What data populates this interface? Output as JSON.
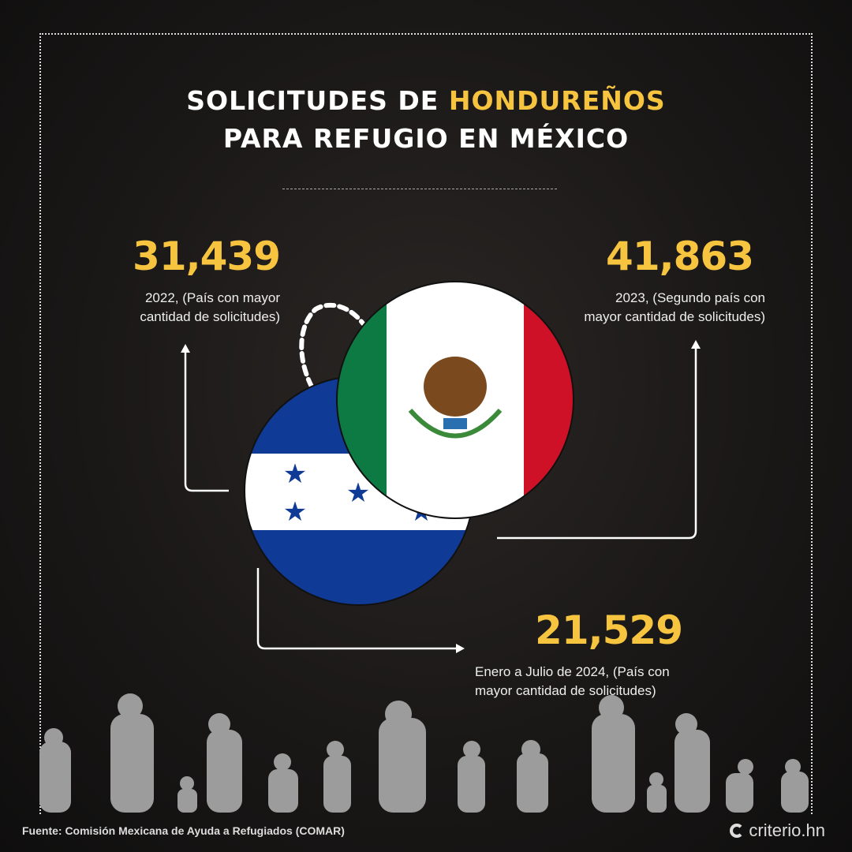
{
  "title": {
    "line1_part1": "SOLICITUDES DE ",
    "line1_highlight": "HONDUREÑOS",
    "line2": "PARA REFUGIO EN MÉXICO"
  },
  "stats": [
    {
      "value": "31,439",
      "caption_line1": "2022, (País con mayor",
      "caption_line2": "cantidad de solicitudes)"
    },
    {
      "value": "41,863",
      "caption_line1": "2023, (Segundo país con",
      "caption_line2": "mayor cantidad de solicitudes)"
    },
    {
      "value": "21,529",
      "caption_line1": "Enero a Julio de 2024, (País con",
      "caption_line2": "mayor cantidad de solicitudes)"
    }
  ],
  "flags": [
    "honduras-flag",
    "mexico-flag"
  ],
  "footer": {
    "source": "Fuente:  Comisión Mexicana de Ayuda a Refugiados (COMAR)",
    "brand": "criterio.hn"
  },
  "colors": {
    "accent": "#f7c440",
    "honduras_blue": "#0f3b97",
    "mexico_green": "#0e7a43",
    "mexico_red": "#ce1126"
  }
}
